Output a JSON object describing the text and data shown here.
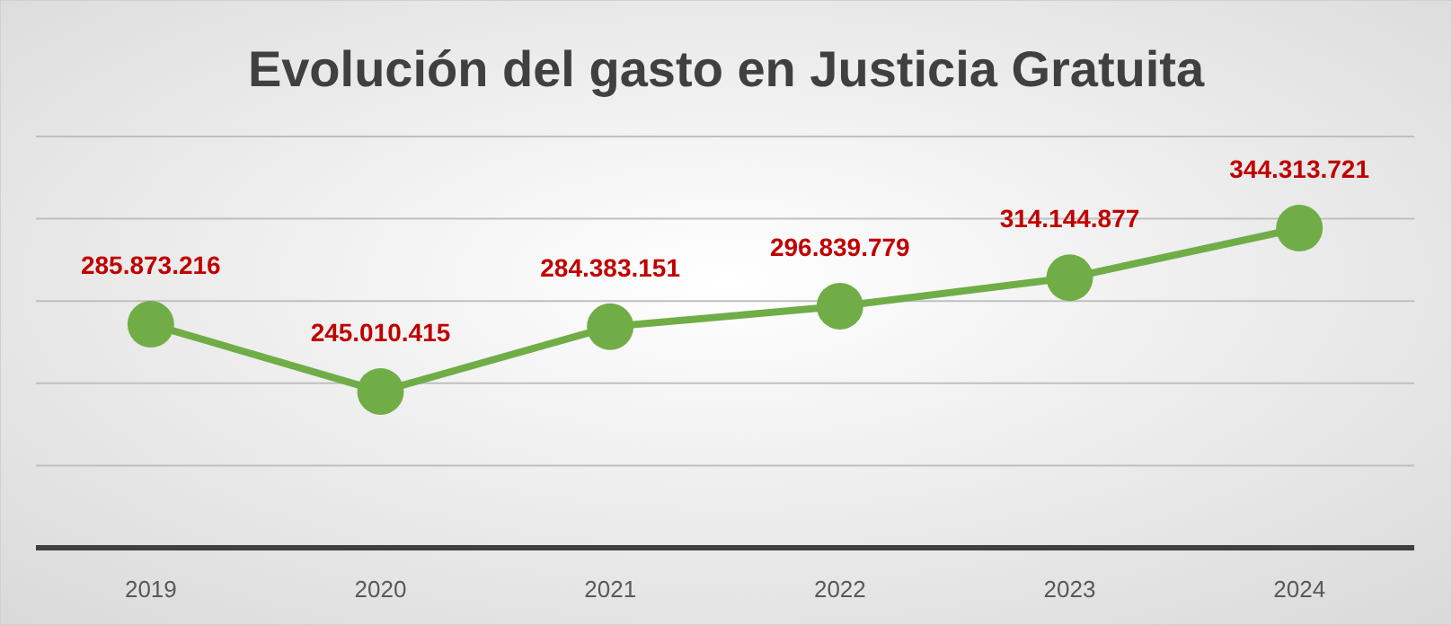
{
  "chart_data": {
    "type": "line",
    "title": "Evolución del gasto en Justicia Gratuita",
    "categories": [
      "2019",
      "2020",
      "2021",
      "2022",
      "2023",
      "2024"
    ],
    "series": [
      {
        "color": "#70ad47",
        "values": [
          285873216,
          245010415,
          284383151,
          296839779,
          314144877,
          344313721
        ],
        "value_labels": [
          "285.873.216",
          "245.010.415",
          "284.383.151",
          "296.839.779",
          "314.144.877",
          "344.313.721"
        ]
      }
    ],
    "ylim": [
      150000000,
      400000000
    ],
    "yticks": [
      {
        "value": 150000000,
        "label": null
      },
      {
        "value": 200000000,
        "label": null
      },
      {
        "value": 250000000,
        "label": null
      },
      {
        "value": 300000000,
        "label": null
      },
      {
        "value": 350000000,
        "label": null
      },
      {
        "value": 400000000,
        "label": null
      }
    ],
    "tick_labels": "x",
    "grid": "y",
    "marker": "circle",
    "line_style": "solid"
  }
}
